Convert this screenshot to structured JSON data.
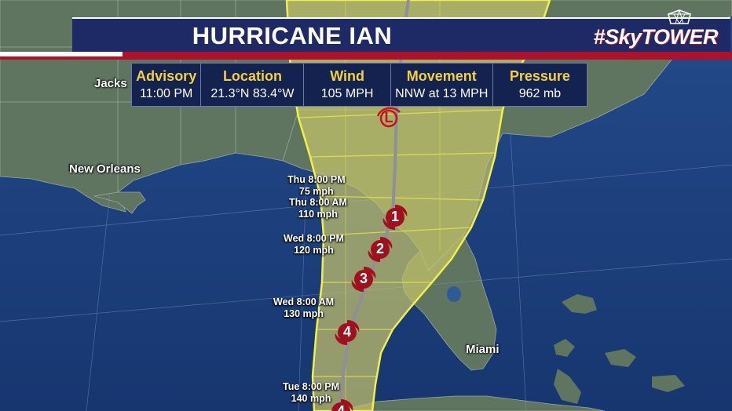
{
  "header": {
    "title": "HURRICANE IAN",
    "brand": "#SkyTOWER"
  },
  "advisory_table": {
    "columns": [
      {
        "header": "Advisory",
        "value": "11:00 PM"
      },
      {
        "header": "Location",
        "value": "21.3°N  83.4°W"
      },
      {
        "header": "Wind",
        "value": "105 MPH"
      },
      {
        "header": "Movement",
        "value": "NNW at 13 MPH"
      },
      {
        "header": "Pressure",
        "value": "962 mb"
      }
    ]
  },
  "cities": [
    {
      "name": "Jacks"
    },
    {
      "name": "New Orleans"
    },
    {
      "name": "Miami"
    }
  ],
  "forecast_points": [
    {
      "time": "Thu 8:00 PM",
      "wind": "75 mph",
      "category": "L"
    },
    {
      "time": "Thu 8:00 AM",
      "wind": "110 mph",
      "category": "1"
    },
    {
      "time": "Wed 8:00 PM",
      "wind": "120 mph",
      "category": "2"
    },
    {
      "time": "",
      "wind": "",
      "category": "3"
    },
    {
      "time": "Wed 8:00 AM",
      "wind": "130 mph",
      "category": "4"
    },
    {
      "time": "Tue 8:00 PM",
      "wind": "140 mph",
      "category": "4"
    }
  ],
  "colors": {
    "ocean": "#1c3f7a",
    "land": "#5f7560",
    "cone_fill": "#c9c66a",
    "cone_edge": "#f3ef4a",
    "storm_icon": "#a0101e",
    "header_bg": "#1d2a66",
    "accent_red": "#b0112a",
    "table_header_text": "#f2d13b"
  }
}
